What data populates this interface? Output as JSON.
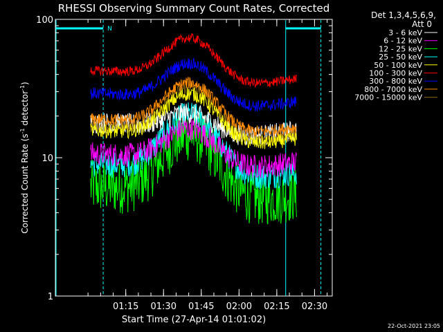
{
  "chart_data": {
    "type": "line",
    "title": "RHESSI Observing Summary Count Rates, Corrected",
    "xlabel": "Start Time (27-Apr-14 01:01:02)",
    "ylabel_main": "Corrected Count Rate (s",
    "ylabel_sup1": "-1",
    "ylabel_mid": " detector",
    "ylabel_sup2": "-1",
    "ylabel_end": ")",
    "yscale": "log",
    "ylim": [
      1,
      100
    ],
    "xlim_minutes": [
      -14,
      96
    ],
    "x_ticks": [
      "01:15",
      "01:30",
      "01:45",
      "02:00",
      "02:15",
      "02:30"
    ],
    "y_ticks": [
      "1",
      "10",
      "100"
    ],
    "legend_header": [
      "Det 1,3,4,5,6,9,",
      "Att 0"
    ],
    "night_label": "N",
    "footer_date": "22-Oct-2021 23:05",
    "data_interval_minutes": [
      0,
      82
    ],
    "series": [
      {
        "name": "3 - 6 keV",
        "color": "#ffffff",
        "base": 16,
        "peak": 22,
        "noise": 0.18
      },
      {
        "name": "6 - 12 keV",
        "color": "#ff00ff",
        "base": 9.5,
        "peak": 17,
        "noise": 0.2
      },
      {
        "name": "12 - 25 keV",
        "color": "#00ff00",
        "base": 5.5,
        "peak": 15,
        "noise": 0.45
      },
      {
        "name": "25 - 50 keV",
        "color": "#00ffff",
        "base": 8,
        "peak": 21,
        "noise": 0.22
      },
      {
        "name": "50 - 100 keV",
        "color": "#ffff00",
        "base": 14,
        "peak": 30,
        "noise": 0.12
      },
      {
        "name": "100 - 300 keV",
        "color": "#ff0000",
        "base": 38,
        "peak": 76,
        "noise": 0.08
      },
      {
        "name": "300 - 800 keV",
        "color": "#0000ff",
        "base": 26,
        "peak": 50,
        "noise": 0.1
      },
      {
        "name": "800 - 7000 keV",
        "color": "#ff8c00",
        "base": 17,
        "peak": 36,
        "noise": 0.1
      },
      {
        "name": "7000 - 15000 keV",
        "color": "#8b6914",
        "base": 15,
        "peak": 33,
        "noise": 0.1
      }
    ]
  }
}
